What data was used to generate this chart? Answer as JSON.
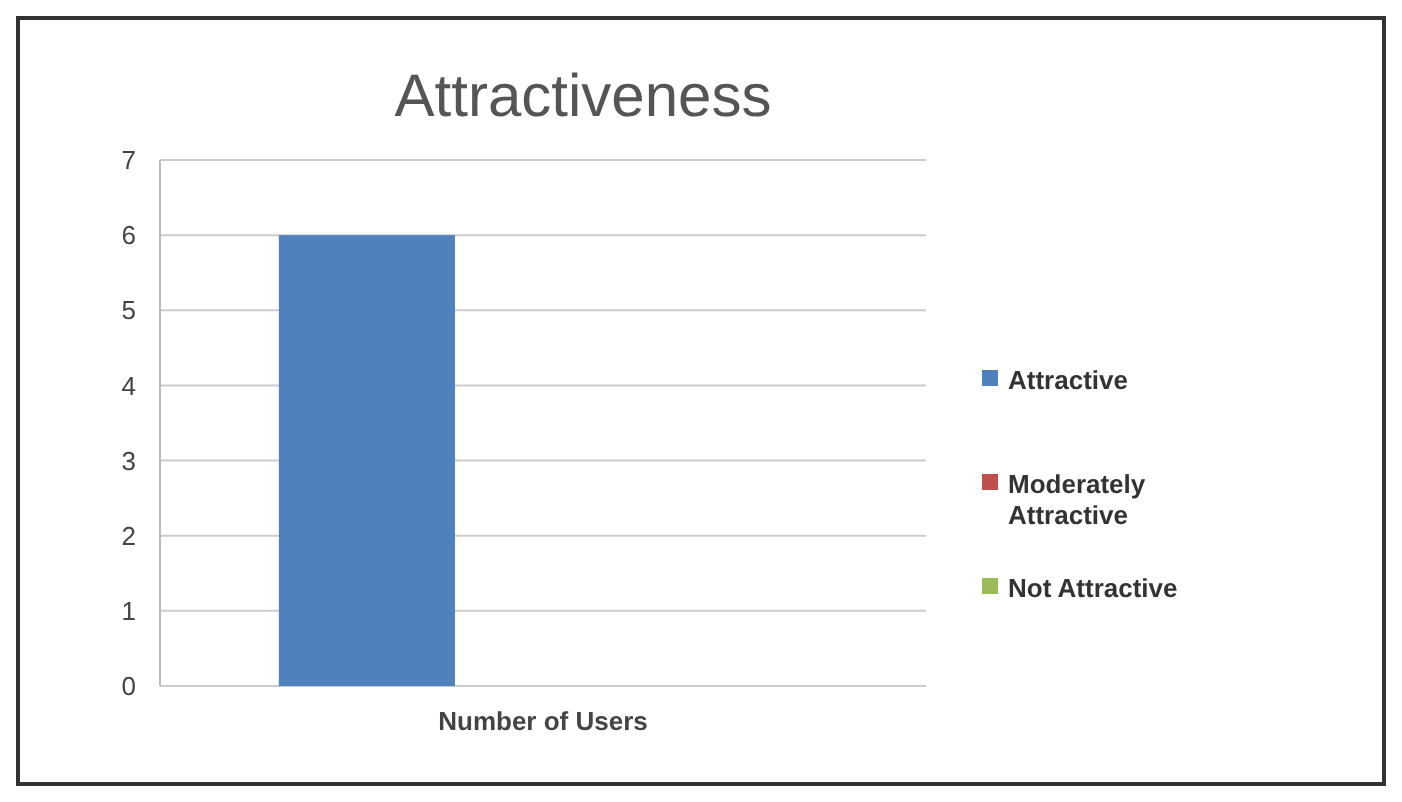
{
  "chart_data": {
    "type": "bar",
    "title": "Attractiveness",
    "categories": [
      "Number of Users"
    ],
    "series": [
      {
        "name": "Attractive",
        "color": "#4f81bd",
        "values": [
          6
        ]
      },
      {
        "name": "Moderately Attractive",
        "color": "#c0504d",
        "values": [
          0
        ]
      },
      {
        "name": "Not Attractive",
        "color": "#9bbb59",
        "values": [
          0
        ]
      }
    ],
    "ylim": [
      0,
      7
    ],
    "yticks": [
      0,
      1,
      2,
      3,
      4,
      5,
      6,
      7
    ],
    "grid": "y",
    "legend": "right"
  }
}
